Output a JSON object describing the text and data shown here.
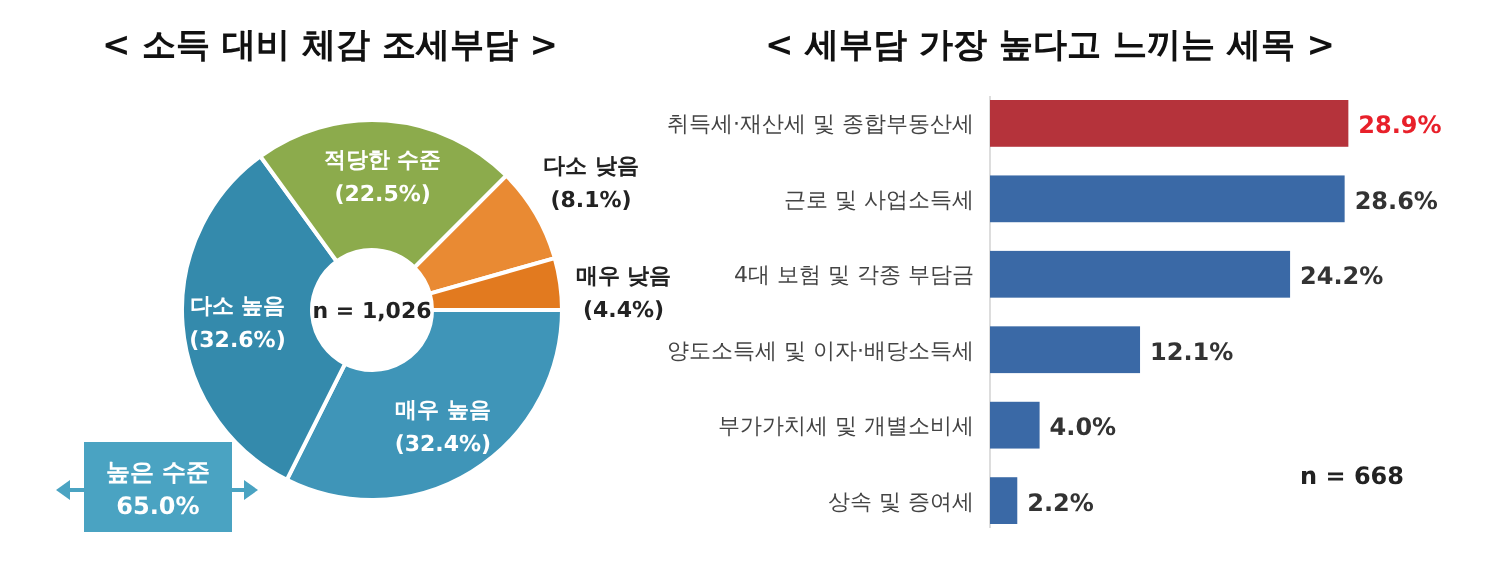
{
  "chart_data": [
    {
      "type": "donut",
      "title": "< 소득 대비 체감 조세부담 >",
      "categories": [
        "매우 높음",
        "다소 높음",
        "적당한 수준",
        "다소 낮음",
        "매우 낮음"
      ],
      "values": [
        32.4,
        32.6,
        22.5,
        8.1,
        4.4
      ],
      "value_labels": [
        "(32.4%)",
        "(32.6%)",
        "(22.5%)",
        "(8.1%)",
        "(4.4%)"
      ],
      "colors": [
        "#3f95b8",
        "#348aac",
        "#8cab4c",
        "#e98a33",
        "#e27a1f"
      ],
      "annotations": [
        "n = 1,026",
        "높은 수준 65.0%"
      ]
    },
    {
      "type": "bar",
      "orientation": "horizontal",
      "title": "< 세부담 가장 높다고 느끼는 세목 >",
      "categories": [
        "취득세·재산세 및 종합부동산세",
        "근로 및 사업소득세",
        "4대 보험 및 각종 부담금",
        "양도소득세 및 이자·배당소득세",
        "부가가치세 및 개별소비세",
        "상속 및 증여세"
      ],
      "values": [
        28.9,
        28.6,
        24.2,
        12.1,
        4.0,
        2.2
      ],
      "value_labels": [
        "28.9%",
        "28.6%",
        "24.2%",
        "12.1%",
        "4.0%",
        "2.2%"
      ],
      "colors": [
        "#b5333b",
        "#3a69a6",
        "#3a69a6",
        "#3a69a6",
        "#3a69a6",
        "#3a69a6"
      ],
      "annotations": [
        "n = 668"
      ]
    }
  ]
}
